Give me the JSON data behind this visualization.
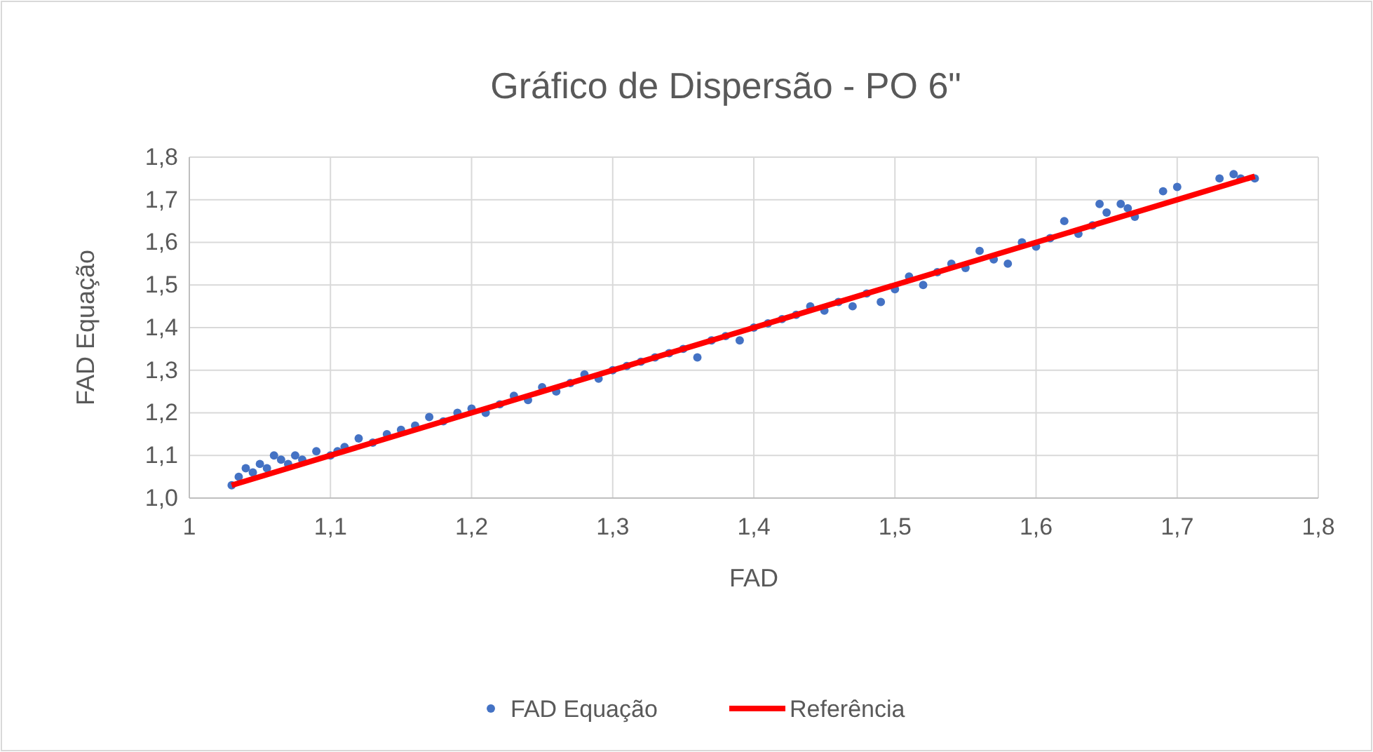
{
  "chart_data": {
    "type": "scatter",
    "title": "Gráfico de Dispersão - PO 6\"",
    "xlabel": "FAD",
    "ylabel": "FAD Equação",
    "xlim": [
      1,
      1.8
    ],
    "xticks": [
      1,
      {
        "value": 1.1,
        "label": "1,1"
      },
      {
        "value": 1.2,
        "label": "1,2"
      },
      {
        "value": 1.3,
        "label": "1,3"
      },
      {
        "value": 1.4,
        "label": "1,4"
      },
      {
        "value": 1.5,
        "label": "1,5"
      },
      {
        "value": 1.6,
        "label": "1,6"
      },
      {
        "value": 1.7,
        "label": "1,7"
      },
      {
        "value": 1.8,
        "label": "1,8"
      }
    ],
    "ylim": [
      1,
      1.8
    ],
    "yticks": [
      {
        "value": 1,
        "label": "1,0"
      },
      {
        "value": 1.1,
        "label": "1,1"
      },
      {
        "value": 1.2,
        "label": "1,2"
      },
      {
        "value": 1.3,
        "label": "1,3"
      },
      {
        "value": 1.4,
        "label": "1,4"
      },
      {
        "value": 1.5,
        "label": "1,5"
      },
      {
        "value": 1.6,
        "label": "1,6"
      },
      {
        "value": 1.7,
        "label": "1,7"
      },
      {
        "value": 1.8,
        "label": "1,8"
      }
    ],
    "grid": true,
    "legend": "bottom",
    "series": [
      {
        "name": "FAD Equação",
        "color": "#4472c4",
        "marker": "circle",
        "x": [
          1.03,
          1.035,
          1.04,
          1.045,
          1.05,
          1.055,
          1.06,
          1.065,
          1.07,
          1.075,
          1.08,
          1.09,
          1.1,
          1.105,
          1.11,
          1.12,
          1.13,
          1.14,
          1.15,
          1.16,
          1.17,
          1.18,
          1.19,
          1.2,
          1.21,
          1.22,
          1.23,
          1.24,
          1.25,
          1.26,
          1.27,
          1.28,
          1.29,
          1.3,
          1.31,
          1.32,
          1.33,
          1.34,
          1.35,
          1.36,
          1.37,
          1.38,
          1.39,
          1.4,
          1.41,
          1.42,
          1.43,
          1.44,
          1.45,
          1.46,
          1.47,
          1.48,
          1.49,
          1.5,
          1.51,
          1.52,
          1.53,
          1.54,
          1.55,
          1.56,
          1.57,
          1.58,
          1.59,
          1.6,
          1.61,
          1.62,
          1.63,
          1.64,
          1.645,
          1.65,
          1.66,
          1.665,
          1.67,
          1.69,
          1.7,
          1.73,
          1.74,
          1.745,
          1.755
        ],
        "values": [
          1.03,
          1.05,
          1.07,
          1.06,
          1.08,
          1.07,
          1.1,
          1.09,
          1.08,
          1.1,
          1.09,
          1.11,
          1.1,
          1.11,
          1.12,
          1.14,
          1.13,
          1.15,
          1.16,
          1.17,
          1.19,
          1.18,
          1.2,
          1.21,
          1.2,
          1.22,
          1.24,
          1.23,
          1.26,
          1.25,
          1.27,
          1.29,
          1.28,
          1.3,
          1.31,
          1.32,
          1.33,
          1.34,
          1.35,
          1.33,
          1.37,
          1.38,
          1.37,
          1.4,
          1.41,
          1.42,
          1.43,
          1.45,
          1.44,
          1.46,
          1.45,
          1.48,
          1.46,
          1.49,
          1.52,
          1.5,
          1.53,
          1.55,
          1.54,
          1.58,
          1.56,
          1.55,
          1.6,
          1.59,
          1.61,
          1.65,
          1.62,
          1.64,
          1.69,
          1.67,
          1.69,
          1.68,
          1.66,
          1.72,
          1.73,
          1.75,
          1.76,
          1.75,
          1.75
        ]
      },
      {
        "name": "Referência",
        "color": "#ff0000",
        "type": "line",
        "marker": "none",
        "x": [
          1.03,
          1.755
        ],
        "values": [
          1.03,
          1.755
        ]
      }
    ]
  }
}
